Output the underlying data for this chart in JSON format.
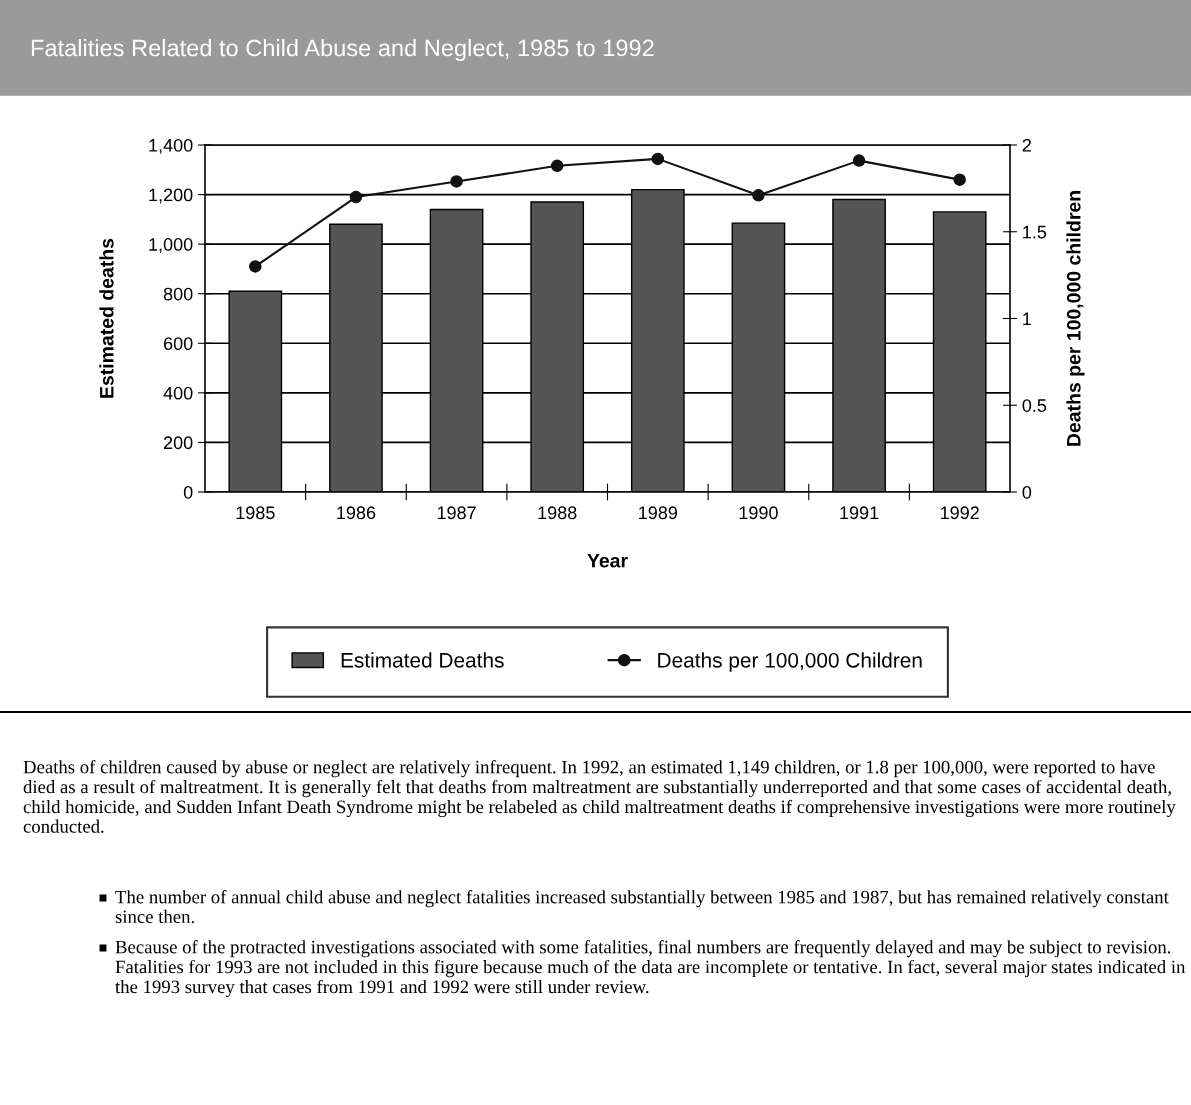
{
  "chart_data": {
    "type": "bar",
    "title": "Fatalities Related to Child Abuse and Neglect, 1985 to 1992",
    "categories": [
      "1985",
      "1986",
      "1987",
      "1988",
      "1989",
      "1990",
      "1991",
      "1992"
    ],
    "series": [
      {
        "name": "Estimated Deaths",
        "color": "#555555",
        "values": [
          810,
          1080,
          1140,
          1170,
          1220,
          1085,
          1180,
          1130
        ]
      },
      {
        "name": "Deaths per 100,000 Children",
        "type": "line",
        "axis": "y2",
        "color": "#111111",
        "marker": "circle",
        "line_style": "solid",
        "values": [
          1.3,
          1.7,
          1.79,
          1.88,
          1.92,
          1.71,
          1.91,
          1.8
        ]
      }
    ],
    "xlabel": "Year",
    "ylabel": "Estimated deaths",
    "y2label": "Deaths per 100,000 children",
    "ylim": [
      0,
      1400
    ],
    "yticks": [
      {
        "value": 0,
        "label": "0"
      },
      {
        "value": 200,
        "label": "200"
      },
      {
        "value": 400,
        "label": "400"
      },
      {
        "value": 600,
        "label": "600"
      },
      {
        "value": 800,
        "label": "800"
      },
      {
        "value": 1000,
        "label": "1,000"
      },
      {
        "value": 1200,
        "label": "1,200"
      },
      {
        "value": 1400,
        "label": "1,400"
      }
    ],
    "y2lim": [
      0,
      2
    ],
    "y2ticks": [
      0,
      0.5,
      1,
      1.5,
      2
    ],
    "grid": "y",
    "legend": "bottom",
    "annotations": [
      "Deaths of children caused by abuse or neglect are relatively infrequent. In 1992, an estimated 1,149 children, or 1.8 per 100,000, were reported to have died as a result of maltreatment. It is generally felt that deaths from maltreatment are substantially underreported and that some cases of accidental death, child homicide, and Sudden Infant Death Syndrome might be relabeled as child maltreatment deaths if comprehensive investigations were more routinely conducted.",
      "The number of annual child abuse and neglect fatalities increased substantially between 1985 and 1987, but has remained relatively constant since then.",
      "Because of the protracted investigations associated with some fatalities, final numbers are frequently delayed and may be subject to revision. Fatalities for 1993 are not included in this figure because much of the data are incomplete or tentative. In fact, several major states indicated in the 1993 survey that cases from 1991 and 1992 were still under review."
    ]
  }
}
